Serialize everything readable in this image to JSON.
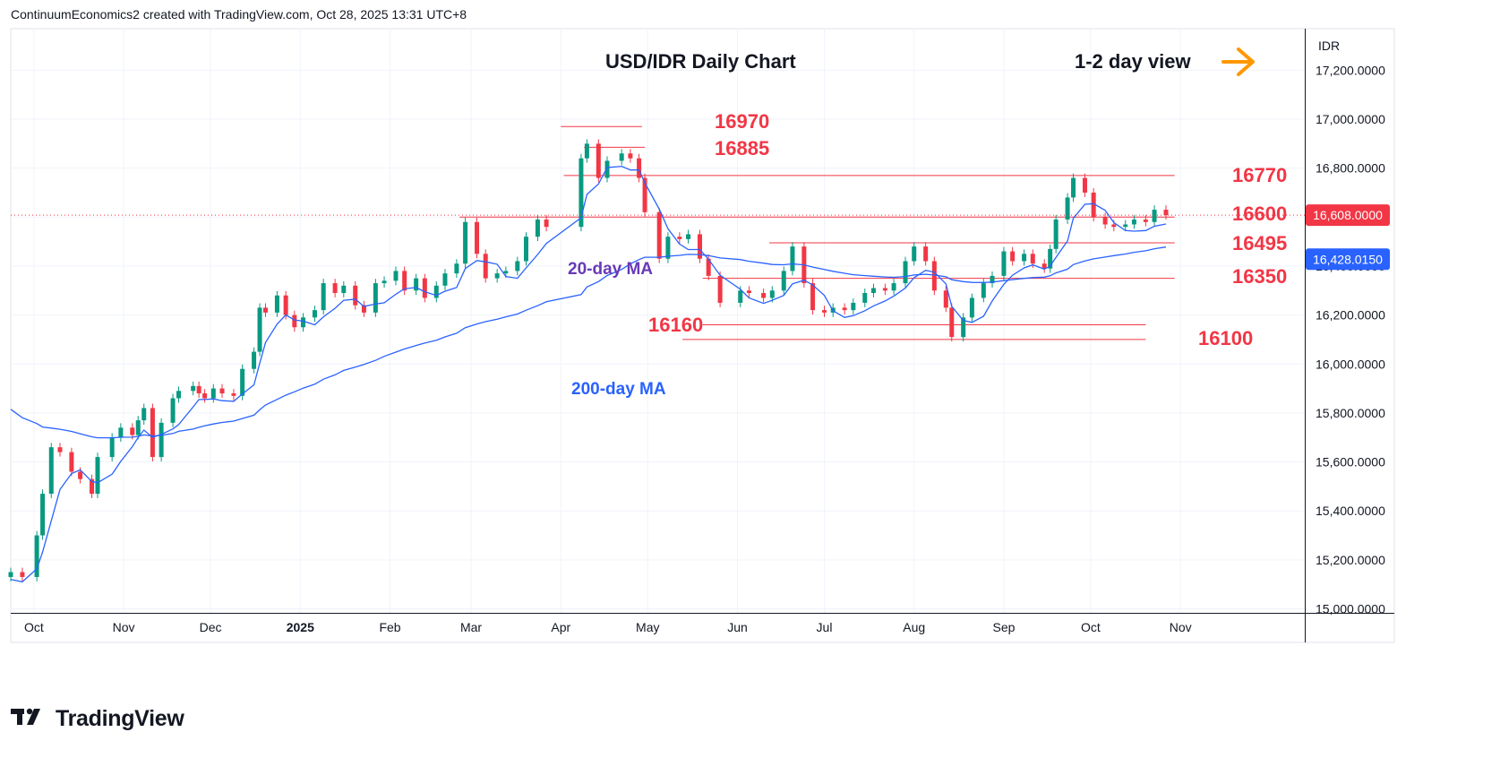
{
  "header": "ContinuumEconomics2 created with TradingView.com, Oct 28, 2025 13:31 UTC+8",
  "brand": "TradingView",
  "chart_data": {
    "type": "candlestick",
    "title": "USD/IDR Daily Chart",
    "view_label": "1-2 day view",
    "currency": "IDR",
    "ylim": [
      15000,
      17320
    ],
    "y_ticks": [
      "17,200.0000",
      "17,000.0000",
      "16,800.0000",
      "16,600.0000",
      "16,400.0000",
      "16,200.0000",
      "16,000.0000",
      "15,800.0000",
      "15,600.0000",
      "15,400.0000",
      "15,200.0000",
      "15,000.0000"
    ],
    "x_ticks": [
      "Oct",
      "Nov",
      "Dec",
      "2025",
      "Feb",
      "Mar",
      "Apr",
      "May",
      "Jun",
      "Jul",
      "Aug",
      "Sep",
      "Oct",
      "Nov"
    ],
    "grid": true,
    "last_price": {
      "value": 16608,
      "label": "16,608.0000",
      "color": "#f23645"
    },
    "ma200_price": {
      "value": 16428.015,
      "label": "16,428.0150",
      "color": "#2962ff"
    },
    "levels": [
      {
        "value": 16970,
        "label": "16970",
        "from": "2025-04-01",
        "to": "2025-04-29"
      },
      {
        "value": 16885,
        "label": "16885",
        "from": "2025-04-09",
        "to": "2025-04-30"
      },
      {
        "value": 16770,
        "label": "16770",
        "from": "2025-04-02",
        "to": "2025-10-30"
      },
      {
        "value": 16600,
        "label": "16600",
        "from": "2025-02-25",
        "to": "2025-10-30"
      },
      {
        "value": 16495,
        "label": "16495",
        "from": "2025-06-12",
        "to": "2025-10-30"
      },
      {
        "value": 16350,
        "label": "16350",
        "from": "2025-05-20",
        "to": "2025-10-30"
      },
      {
        "value": 16160,
        "label": "16160",
        "from": "2025-05-20",
        "to": "2025-10-20"
      },
      {
        "value": 16100,
        "label": "16100",
        "from": "2025-05-13",
        "to": "2025-10-20"
      }
    ],
    "annotations": [
      "20-day MA",
      "200-day MA"
    ],
    "colors": {
      "up": "#089981",
      "down": "#f23645",
      "level": "#f23645",
      "ma20": "#2962ff",
      "ma200": "#2962ff",
      "ma20_label": "#673ab7",
      "ma200_label": "#2962ff",
      "arrow": "#ff9800"
    },
    "candles_close": [
      [
        "2024-09-23",
        15150
      ],
      [
        "2024-09-27",
        15130
      ],
      [
        "2024-10-02",
        15300
      ],
      [
        "2024-10-04",
        15470
      ],
      [
        "2024-10-07",
        15660
      ],
      [
        "2024-10-10",
        15640
      ],
      [
        "2024-10-14",
        15560
      ],
      [
        "2024-10-17",
        15530
      ],
      [
        "2024-10-21",
        15470
      ],
      [
        "2024-10-23",
        15620
      ],
      [
        "2024-10-28",
        15700
      ],
      [
        "2024-10-31",
        15740
      ],
      [
        "2024-11-04",
        15710
      ],
      [
        "2024-11-06",
        15770
      ],
      [
        "2024-11-08",
        15820
      ],
      [
        "2024-11-11",
        15620
      ],
      [
        "2024-11-14",
        15760
      ],
      [
        "2024-11-18",
        15860
      ],
      [
        "2024-11-20",
        15890
      ],
      [
        "2024-11-25",
        15910
      ],
      [
        "2024-11-27",
        15880
      ],
      [
        "2024-11-29",
        15860
      ],
      [
        "2024-12-02",
        15900
      ],
      [
        "2024-12-05",
        15880
      ],
      [
        "2024-12-09",
        15870
      ],
      [
        "2024-12-12",
        15980
      ],
      [
        "2024-12-16",
        16050
      ],
      [
        "2024-12-18",
        16230
      ],
      [
        "2024-12-20",
        16210
      ],
      [
        "2024-12-24",
        16280
      ],
      [
        "2024-12-27",
        16200
      ],
      [
        "2024-12-30",
        16150
      ],
      [
        "2025-01-02",
        16190
      ],
      [
        "2025-01-06",
        16220
      ],
      [
        "2025-01-09",
        16330
      ],
      [
        "2025-01-13",
        16290
      ],
      [
        "2025-01-16",
        16320
      ],
      [
        "2025-01-20",
        16240
      ],
      [
        "2025-01-23",
        16210
      ],
      [
        "2025-01-27",
        16330
      ],
      [
        "2025-01-30",
        16340
      ],
      [
        "2025-02-03",
        16380
      ],
      [
        "2025-02-06",
        16300
      ],
      [
        "2025-02-10",
        16350
      ],
      [
        "2025-02-13",
        16270
      ],
      [
        "2025-02-17",
        16320
      ],
      [
        "2025-02-20",
        16370
      ],
      [
        "2025-02-24",
        16410
      ],
      [
        "2025-02-27",
        16580
      ],
      [
        "2025-03-03",
        16450
      ],
      [
        "2025-03-06",
        16350
      ],
      [
        "2025-03-10",
        16370
      ],
      [
        "2025-03-13",
        16380
      ],
      [
        "2025-03-17",
        16420
      ],
      [
        "2025-03-20",
        16520
      ],
      [
        "2025-03-24",
        16590
      ],
      [
        "2025-03-27",
        16560
      ],
      [
        "2025-04-08",
        16840
      ],
      [
        "2025-04-10",
        16900
      ],
      [
        "2025-04-14",
        16760
      ],
      [
        "2025-04-17",
        16830
      ],
      [
        "2025-04-22",
        16860
      ],
      [
        "2025-04-25",
        16840
      ],
      [
        "2025-04-28",
        16760
      ],
      [
        "2025-04-30",
        16620
      ],
      [
        "2025-05-05",
        16430
      ],
      [
        "2025-05-08",
        16520
      ],
      [
        "2025-05-12",
        16510
      ],
      [
        "2025-05-15",
        16530
      ],
      [
        "2025-05-19",
        16430
      ],
      [
        "2025-05-22",
        16360
      ],
      [
        "2025-05-26",
        16250
      ],
      [
        "2025-06-02",
        16300
      ],
      [
        "2025-06-05",
        16290
      ],
      [
        "2025-06-10",
        16270
      ],
      [
        "2025-06-13",
        16300
      ],
      [
        "2025-06-17",
        16380
      ],
      [
        "2025-06-20",
        16480
      ],
      [
        "2025-06-24",
        16330
      ],
      [
        "2025-06-27",
        16220
      ],
      [
        "2025-07-01",
        16210
      ],
      [
        "2025-07-04",
        16230
      ],
      [
        "2025-07-08",
        16220
      ],
      [
        "2025-07-11",
        16250
      ],
      [
        "2025-07-15",
        16290
      ],
      [
        "2025-07-18",
        16310
      ],
      [
        "2025-07-22",
        16300
      ],
      [
        "2025-07-25",
        16330
      ],
      [
        "2025-07-29",
        16420
      ],
      [
        "2025-08-01",
        16480
      ],
      [
        "2025-08-05",
        16420
      ],
      [
        "2025-08-08",
        16300
      ],
      [
        "2025-08-12",
        16230
      ],
      [
        "2025-08-14",
        16110
      ],
      [
        "2025-08-18",
        16190
      ],
      [
        "2025-08-21",
        16270
      ],
      [
        "2025-08-25",
        16330
      ],
      [
        "2025-08-28",
        16360
      ],
      [
        "2025-09-01",
        16460
      ],
      [
        "2025-09-04",
        16420
      ],
      [
        "2025-09-08",
        16450
      ],
      [
        "2025-09-11",
        16410
      ],
      [
        "2025-09-15",
        16390
      ],
      [
        "2025-09-17",
        16470
      ],
      [
        "2025-09-19",
        16590
      ],
      [
        "2025-09-23",
        16680
      ],
      [
        "2025-09-25",
        16760
      ],
      [
        "2025-09-29",
        16700
      ],
      [
        "2025-10-02",
        16600
      ],
      [
        "2025-10-06",
        16570
      ],
      [
        "2025-10-09",
        16560
      ],
      [
        "2025-10-13",
        16570
      ],
      [
        "2025-10-16",
        16590
      ],
      [
        "2025-10-20",
        16580
      ],
      [
        "2025-10-23",
        16630
      ],
      [
        "2025-10-27",
        16608
      ]
    ]
  }
}
